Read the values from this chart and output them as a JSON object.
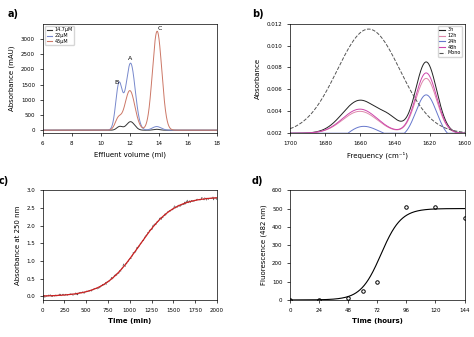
{
  "panel_a": {
    "label": "a)",
    "xlabel": "Effluent volume (ml)",
    "ylabel": "Absorbance (mAU)",
    "xlim": [
      6,
      18
    ],
    "ylim": [
      -100,
      3500
    ],
    "yticks": [
      0,
      500,
      1000,
      1500,
      2000,
      2500,
      3000
    ],
    "xticks": [
      6,
      8,
      10,
      12,
      14,
      16,
      18
    ],
    "legend": [
      "14.7μM",
      "22μM",
      "45μM"
    ],
    "colors": [
      "#333333",
      "#7788cc",
      "#cc7766"
    ],
    "g14": {
      "B": [
        11.3,
        0.2,
        120
      ],
      "A": [
        12.05,
        0.28,
        280
      ],
      "C": [
        13.85,
        0.22,
        30
      ]
    },
    "g22": {
      "B": [
        11.25,
        0.22,
        1480
      ],
      "A": [
        12.05,
        0.32,
        2200
      ],
      "C": [
        13.85,
        0.3,
        120
      ]
    },
    "g45": {
      "B": [
        11.2,
        0.22,
        350
      ],
      "A": [
        12.0,
        0.35,
        1300
      ],
      "C": [
        13.88,
        0.32,
        3250
      ]
    },
    "label_A": [
      12.05,
      2320
    ],
    "label_B": [
      11.05,
      1530
    ],
    "label_C": [
      14.05,
      3290
    ]
  },
  "panel_b": {
    "label": "b)",
    "xlabel": "Frequency (cm⁻¹)",
    "ylabel": "Absorbance",
    "xlim": [
      1700,
      1600
    ],
    "ylim": [
      0.002,
      0.012
    ],
    "yticks": [
      0.002,
      0.004,
      0.006,
      0.008,
      0.01,
      0.012
    ],
    "xticks": [
      1700,
      1680,
      1660,
      1640,
      1620,
      1600
    ],
    "legend": [
      "3h",
      "12h",
      "24h",
      "48h",
      "Mono"
    ],
    "colors": [
      "#222222",
      "#dd88aa",
      "#6677cc",
      "#cc44aa",
      "#555555"
    ]
  },
  "panel_c": {
    "label": "c)",
    "xlabel": "Time (min)",
    "ylabel": "Absorbance at 250 nm",
    "xlim": [
      0,
      2000
    ],
    "ylim": [
      -0.1,
      3.0
    ],
    "yticks": [
      0.0,
      0.5,
      1.0,
      1.5,
      2.0,
      2.5,
      3.0
    ],
    "xticks": [
      0,
      250,
      500,
      750,
      1000,
      1250,
      1500,
      1750,
      2000
    ],
    "sigmoid": {
      "t0": 1100,
      "k": 0.005,
      "ymax": 2.82
    }
  },
  "panel_d": {
    "label": "d)",
    "xlabel": "Time (hours)",
    "ylabel": "Fluorescence (482 nm)",
    "xlim": [
      0,
      144
    ],
    "ylim": [
      0,
      600
    ],
    "yticks": [
      0,
      100,
      200,
      300,
      400,
      500,
      600
    ],
    "xticks": [
      0,
      24,
      48,
      72,
      96,
      120,
      144
    ],
    "data_t": [
      0,
      24,
      48,
      60,
      72,
      96,
      120,
      144
    ],
    "data_y": [
      0,
      0,
      10,
      50,
      100,
      510,
      510,
      450
    ],
    "sigmoid": {
      "t0": 75,
      "k": 0.12,
      "ymax": 500
    }
  }
}
